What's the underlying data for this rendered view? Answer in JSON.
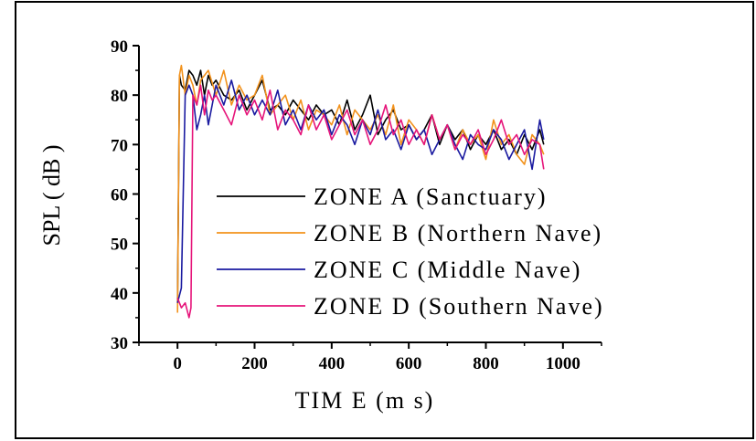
{
  "chart_data": {
    "type": "line",
    "title": "",
    "xlabel": "TIM E (m s)",
    "ylabel": "SPL ( dB )",
    "xlim": [
      -100,
      1100
    ],
    "ylim": [
      30,
      90
    ],
    "xticks": [
      0,
      200,
      400,
      600,
      800,
      1000
    ],
    "yticks": [
      30,
      40,
      50,
      60,
      70,
      80,
      90
    ],
    "grid": false,
    "legend_position": "inside-lower-right",
    "series": [
      {
        "name": "ZONE A (Sanctuary)",
        "color": "#000000",
        "x": [
          0,
          5,
          10,
          20,
          30,
          40,
          50,
          60,
          70,
          80,
          90,
          100,
          120,
          140,
          160,
          180,
          200,
          220,
          240,
          260,
          280,
          300,
          320,
          340,
          360,
          380,
          400,
          420,
          440,
          460,
          480,
          500,
          520,
          540,
          560,
          580,
          600,
          620,
          640,
          660,
          680,
          700,
          720,
          740,
          760,
          780,
          800,
          820,
          840,
          860,
          880,
          900,
          920,
          940,
          950
        ],
        "y": [
          38,
          84,
          82,
          81,
          85,
          84,
          82,
          85,
          80,
          84,
          82,
          83,
          80,
          79,
          81,
          77,
          80,
          83,
          77,
          78,
          76,
          79,
          77,
          75,
          78,
          76,
          77,
          74,
          79,
          73,
          76,
          80,
          72,
          75,
          77,
          73,
          74,
          71,
          73,
          76,
          70,
          74,
          71,
          73,
          69,
          72,
          70,
          73,
          69,
          71,
          68,
          72,
          69,
          73,
          70
        ]
      },
      {
        "name": "ZONE B (Northern Nave)",
        "color": "#f2921c",
        "x": [
          0,
          5,
          10,
          20,
          30,
          40,
          50,
          60,
          80,
          100,
          120,
          140,
          160,
          180,
          200,
          220,
          240,
          260,
          280,
          300,
          320,
          340,
          360,
          380,
          400,
          420,
          440,
          460,
          480,
          500,
          520,
          540,
          560,
          580,
          600,
          620,
          640,
          660,
          680,
          700,
          720,
          740,
          760,
          780,
          800,
          820,
          840,
          860,
          880,
          900,
          920,
          940,
          950
        ],
        "y": [
          36,
          84,
          86,
          80,
          84,
          82,
          78,
          83,
          85,
          80,
          85,
          78,
          82,
          79,
          80,
          84,
          76,
          78,
          80,
          75,
          79,
          73,
          77,
          76,
          74,
          78,
          72,
          77,
          75,
          73,
          76,
          72,
          78,
          70,
          75,
          73,
          70,
          76,
          71,
          74,
          69,
          73,
          70,
          72,
          67,
          75,
          70,
          72,
          68,
          66,
          72,
          70,
          68
        ]
      },
      {
        "name": "ZONE C (Middle Nave)",
        "color": "#1a1aa0",
        "x": [
          0,
          10,
          20,
          30,
          40,
          50,
          60,
          70,
          80,
          90,
          100,
          120,
          140,
          160,
          180,
          200,
          220,
          240,
          260,
          280,
          300,
          320,
          340,
          360,
          380,
          400,
          420,
          440,
          460,
          480,
          500,
          520,
          540,
          560,
          580,
          600,
          620,
          640,
          660,
          680,
          700,
          720,
          740,
          760,
          780,
          800,
          820,
          840,
          860,
          880,
          900,
          920,
          940,
          950
        ],
        "y": [
          38,
          41,
          80,
          82,
          80,
          73,
          76,
          80,
          74,
          78,
          82,
          78,
          83,
          77,
          80,
          76,
          79,
          76,
          81,
          74,
          77,
          73,
          78,
          75,
          77,
          72,
          76,
          74,
          70,
          75,
          72,
          77,
          71,
          73,
          69,
          74,
          71,
          73,
          68,
          71,
          74,
          70,
          67,
          72,
          70,
          69,
          73,
          71,
          67,
          70,
          73,
          65,
          75,
          71
        ]
      },
      {
        "name": "ZONE D (Southern Nave)",
        "color": "#e6147a",
        "x": [
          0,
          10,
          20,
          30,
          35,
          40,
          50,
          60,
          70,
          80,
          90,
          100,
          120,
          140,
          160,
          180,
          200,
          220,
          240,
          260,
          280,
          300,
          320,
          340,
          360,
          380,
          400,
          420,
          440,
          460,
          480,
          500,
          520,
          540,
          560,
          580,
          600,
          620,
          640,
          660,
          680,
          700,
          720,
          740,
          760,
          780,
          800,
          820,
          840,
          860,
          880,
          900,
          920,
          940,
          950
        ],
        "y": [
          39,
          37,
          38,
          35,
          37,
          80,
          78,
          82,
          76,
          81,
          79,
          80,
          77,
          74,
          80,
          76,
          79,
          75,
          81,
          73,
          77,
          75,
          72,
          78,
          73,
          76,
          71,
          74,
          77,
          72,
          75,
          70,
          73,
          78,
          72,
          75,
          70,
          73,
          70,
          76,
          71,
          74,
          69,
          72,
          70,
          73,
          68,
          71,
          75,
          70,
          72,
          68,
          71,
          70,
          65
        ]
      }
    ]
  }
}
